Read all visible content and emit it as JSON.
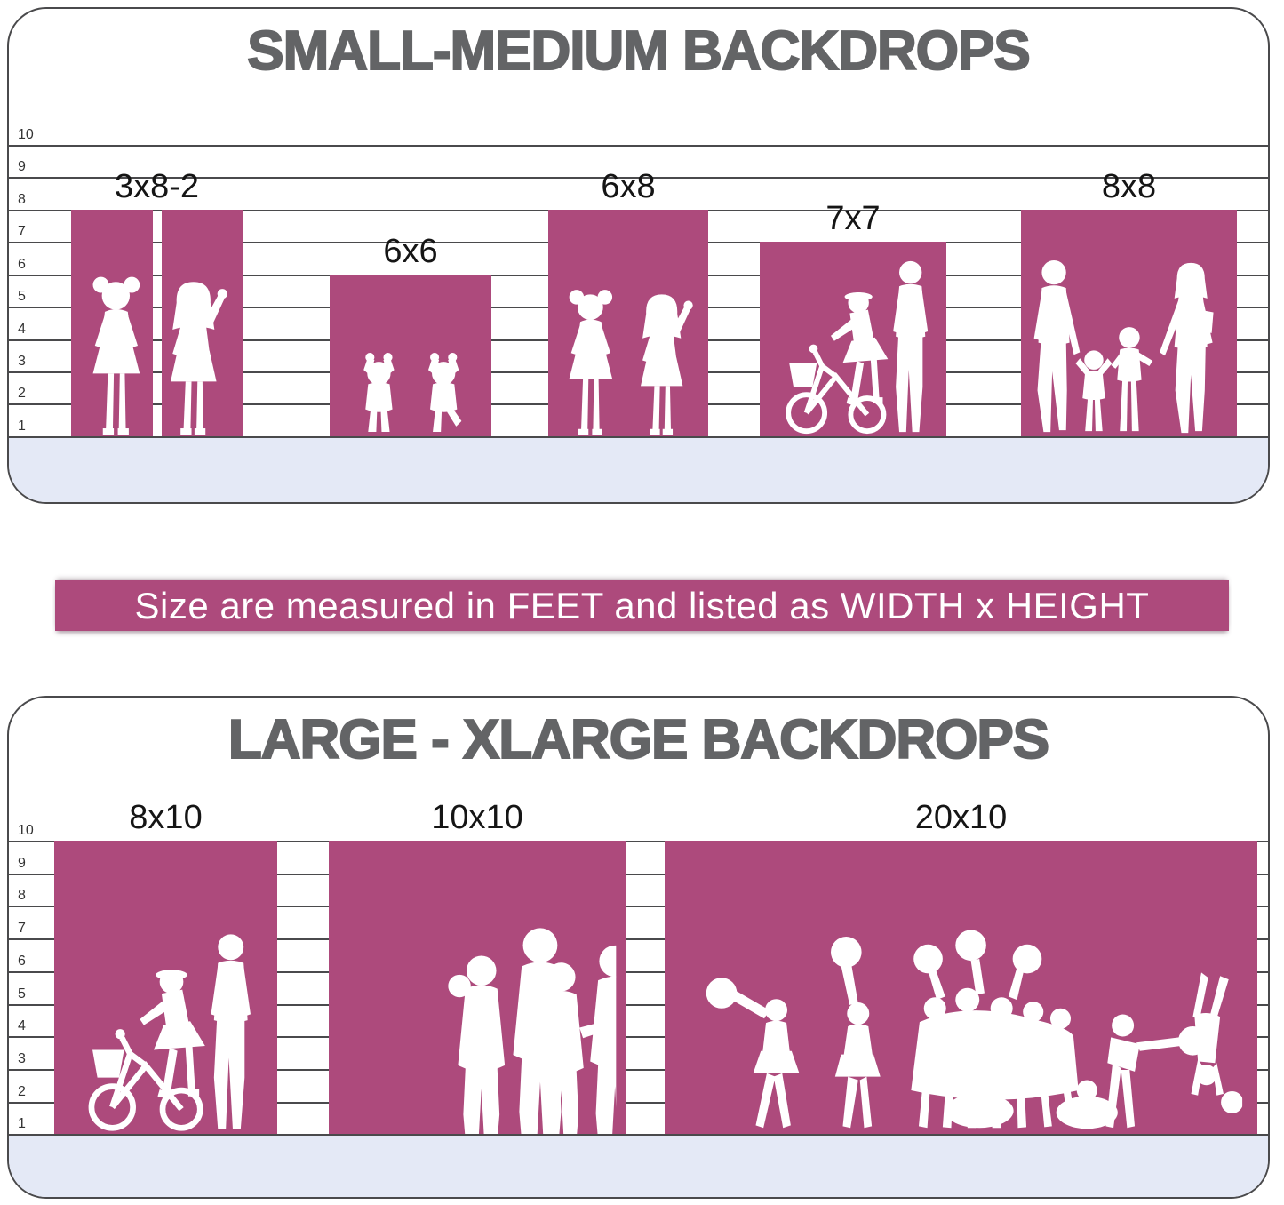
{
  "banner": {
    "text": "Size are measured in FEET and listed as WIDTH x HEIGHT"
  },
  "colors": {
    "backdrop_pink": "#ad4a7c",
    "floor_lavender": "#e4e9f6",
    "title_gray": "#636466",
    "grid_line": "#4a4a4c",
    "banner_text": "#ffffff",
    "silhouette_white": "#ffffff"
  },
  "panels": [
    {
      "title": "SMALL-MEDIUM BACKDROPS",
      "axis_ticks": [
        "10",
        "9",
        "8",
        "7",
        "6",
        "5",
        "4",
        "3",
        "2",
        "1"
      ],
      "backdrops": [
        {
          "label": "3x8-2",
          "width_ft": 3,
          "height_ft": 8,
          "panel_count": 2,
          "silhouette": "two-girls"
        },
        {
          "label": "6x6",
          "width_ft": 6,
          "height_ft": 6,
          "panel_count": 1,
          "silhouette": "two-toddlers"
        },
        {
          "label": "6x8",
          "width_ft": 6,
          "height_ft": 8,
          "panel_count": 1,
          "silhouette": "two-girls"
        },
        {
          "label": "7x7",
          "width_ft": 7,
          "height_ft": 7,
          "panel_count": 1,
          "silhouette": "girl-bike-man"
        },
        {
          "label": "8x8",
          "width_ft": 8,
          "height_ft": 8,
          "panel_count": 1,
          "silhouette": "family-walking"
        }
      ]
    },
    {
      "title": "LARGE - XLARGE BACKDROPS",
      "axis_ticks": [
        "10",
        "9",
        "8",
        "7",
        "6",
        "5",
        "4",
        "3",
        "2",
        "1"
      ],
      "backdrops": [
        {
          "label": "8x10",
          "width_ft": 8,
          "height_ft": 10,
          "panel_count": 1,
          "silhouette": "girl-bike-man"
        },
        {
          "label": "10x10",
          "width_ft": 10,
          "height_ft": 10,
          "panel_count": 1,
          "silhouette": "crowd"
        },
        {
          "label": "20x10",
          "width_ft": 20,
          "height_ft": 10,
          "panel_count": 1,
          "silhouette": "cheer-squad"
        }
      ]
    }
  ],
  "chart_data": [
    {
      "type": "bar",
      "title": "SMALL-MEDIUM BACKDROPS",
      "categories": [
        "3x8-2",
        "6x6",
        "6x8",
        "7x7",
        "8x8"
      ],
      "series": [
        {
          "name": "width_ft",
          "values": [
            3,
            6,
            6,
            7,
            8
          ]
        },
        {
          "name": "height_ft",
          "values": [
            8,
            6,
            8,
            7,
            8
          ]
        }
      ],
      "ylabel": "feet",
      "ylim": [
        1,
        10
      ],
      "grid": true,
      "notes": "3x8-2 is drawn as two 3-ft-wide panels side by side; ruler lines labeled 10 down to 1; floor band below line 1"
    },
    {
      "type": "bar",
      "title": "LARGE - XLARGE BACKDROPS",
      "categories": [
        "8x10",
        "10x10",
        "20x10"
      ],
      "series": [
        {
          "name": "width_ft",
          "values": [
            8,
            10,
            20
          ]
        },
        {
          "name": "height_ft",
          "values": [
            10,
            10,
            10
          ]
        }
      ],
      "ylabel": "feet",
      "ylim": [
        1,
        10
      ],
      "grid": true,
      "notes": "all three backdrops reach the 10-ft line; ruler lines labeled 10 down to 1; floor band below line 1"
    }
  ]
}
